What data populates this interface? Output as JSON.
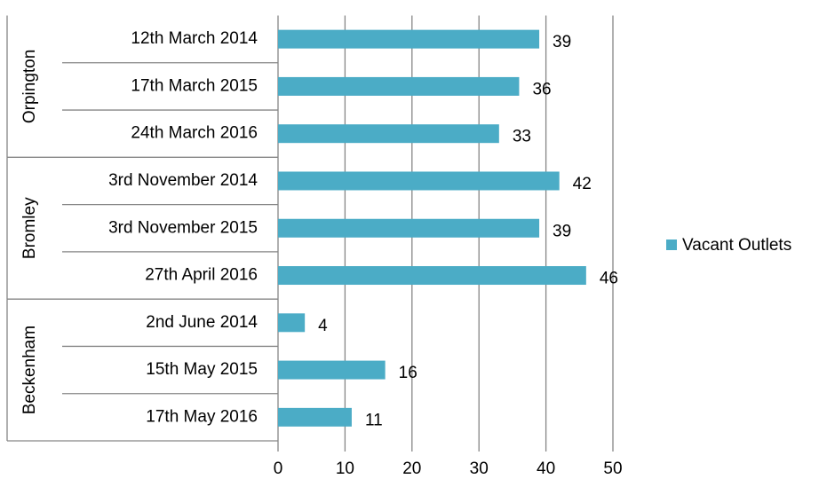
{
  "chart_data": {
    "type": "bar",
    "groups": [
      {
        "name": "Orpington",
        "categories": [
          "12th March 2014",
          "17th March 2015",
          "24th March 2016"
        ]
      },
      {
        "name": "Bromley",
        "categories": [
          "3rd November 2014",
          "3rd November 2015",
          "27th April 2016"
        ]
      },
      {
        "name": "Beckenham",
        "categories": [
          "2nd June 2014",
          "15th May 2015",
          "17th May 2016"
        ]
      }
    ],
    "series": [
      {
        "name": "Vacant Outlets",
        "color": "#4bacc6",
        "values": [
          39,
          36,
          33,
          42,
          39,
          46,
          4,
          16,
          11
        ]
      }
    ],
    "xlim": [
      0,
      50
    ],
    "xticks": [
      0,
      10,
      20,
      30,
      40,
      50
    ],
    "grid": true,
    "legend": "right"
  }
}
